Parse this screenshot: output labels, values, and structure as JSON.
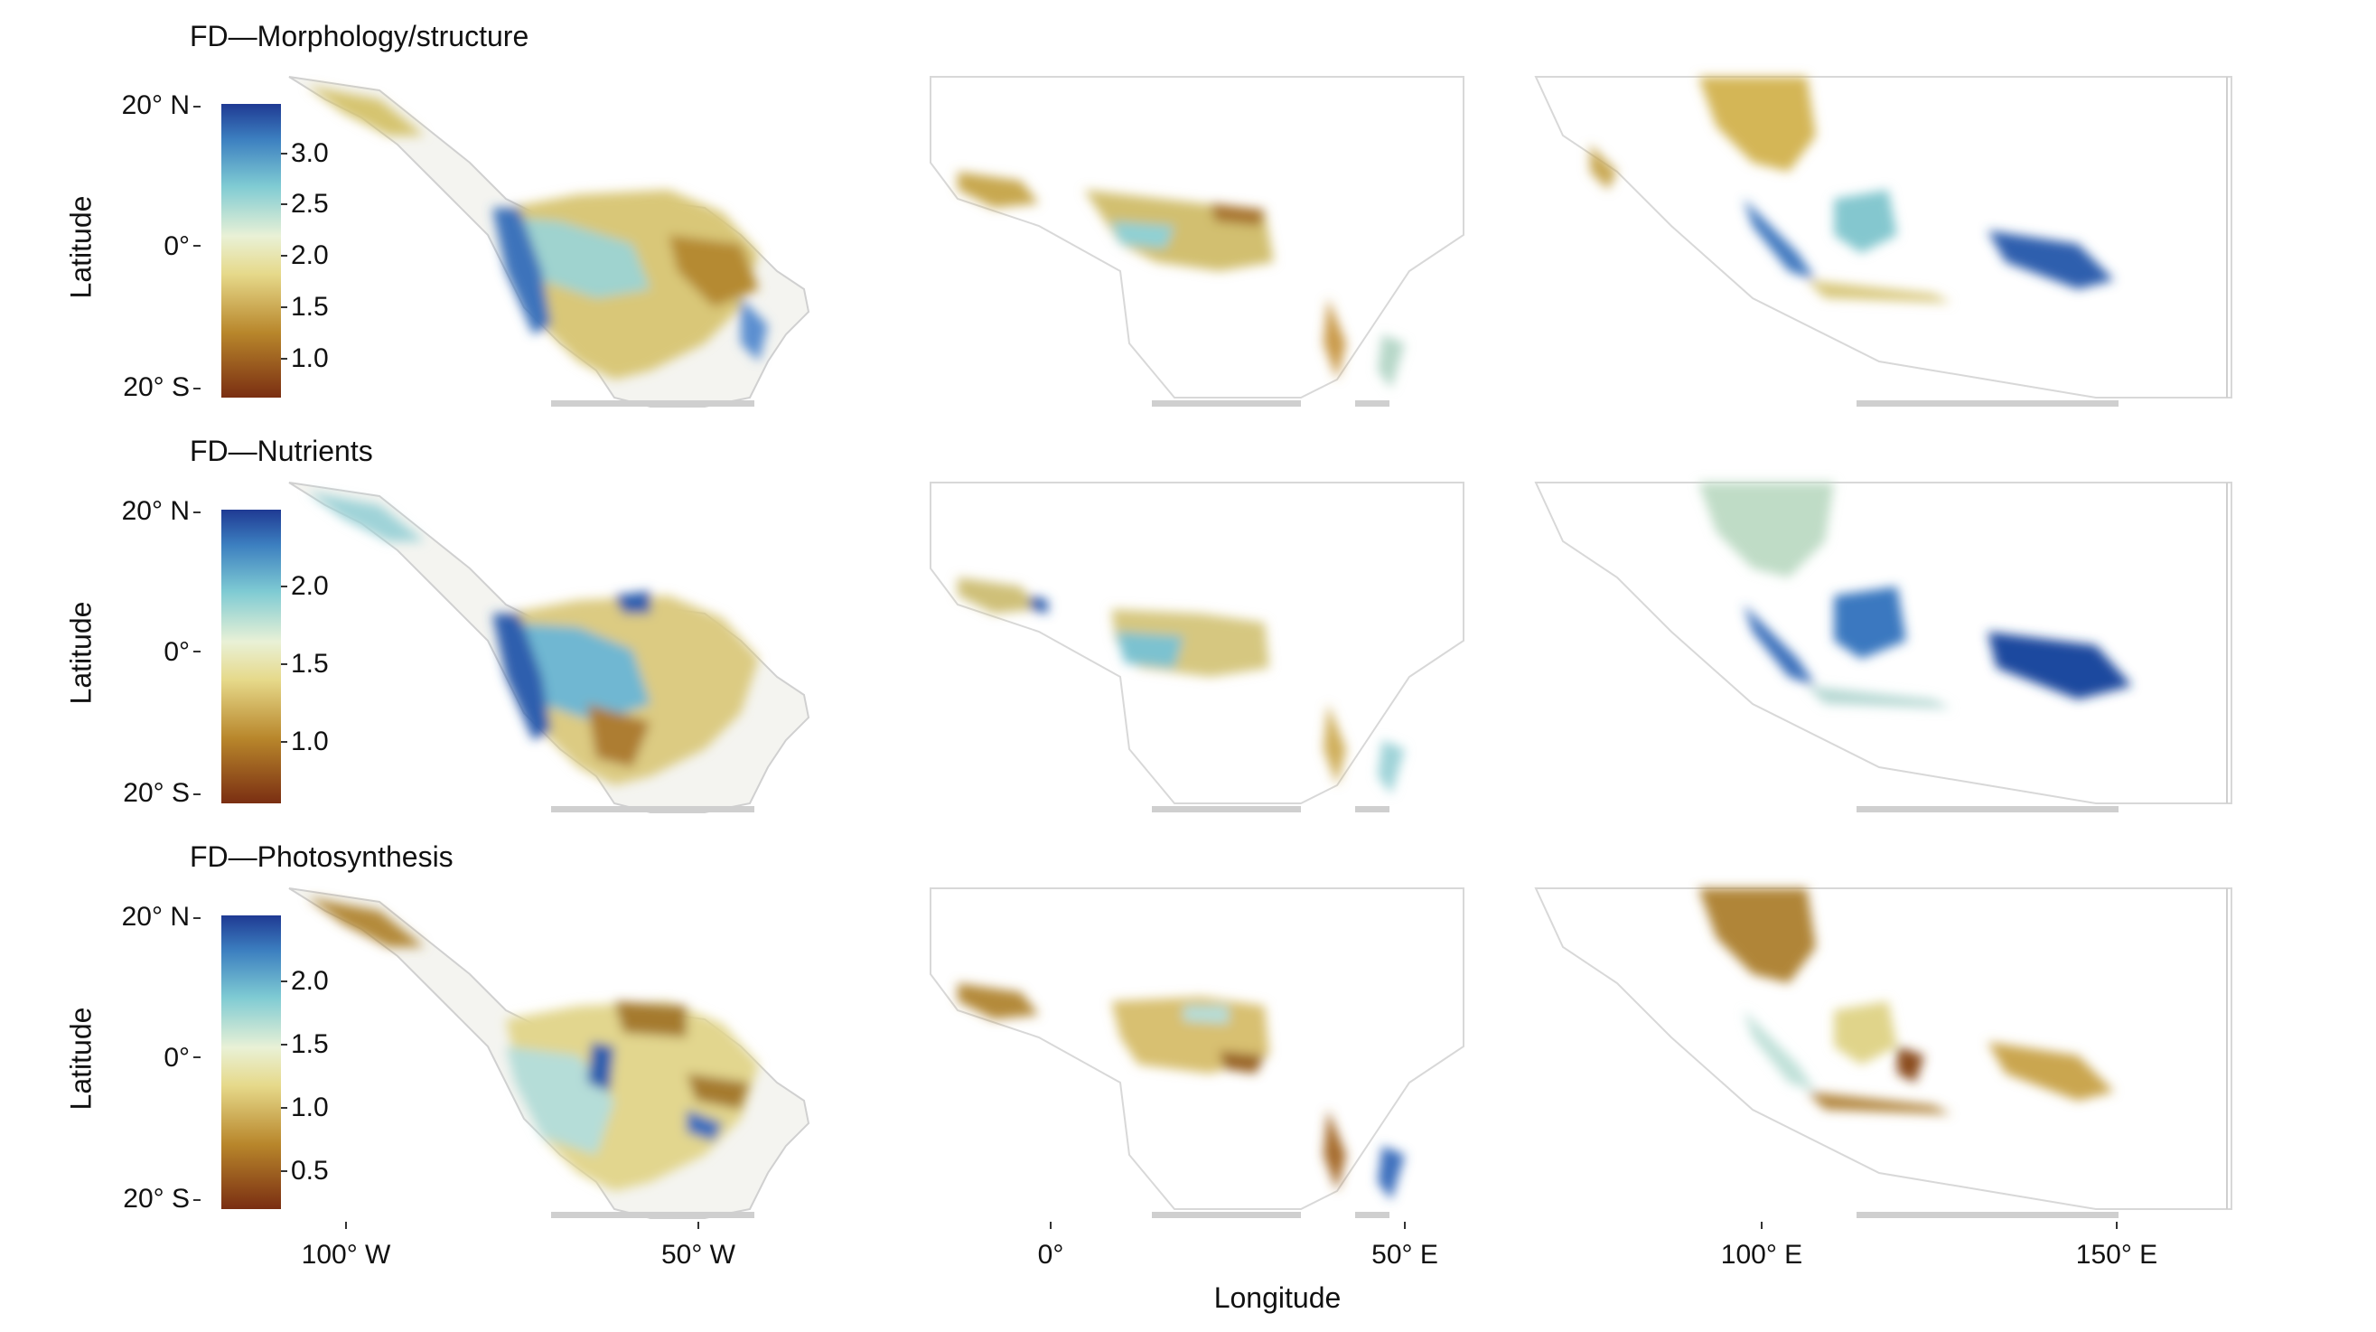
{
  "panels": [
    {
      "title": "FD—Morphology/structure",
      "ylabel": "Latitude",
      "lat_ticks": [
        "20° N",
        "0°",
        "20° S"
      ],
      "colorbar_ticks": [
        "3.0",
        "2.5",
        "2.0",
        "1.5",
        "1.0"
      ]
    },
    {
      "title": "FD—Nutrients",
      "ylabel": "Latitude",
      "lat_ticks": [
        "20° N",
        "0°",
        "20° S"
      ],
      "colorbar_ticks": [
        "2.0",
        "1.5",
        "1.0"
      ]
    },
    {
      "title": "FD—Photosynthesis",
      "ylabel": "Latitude",
      "lat_ticks": [
        "20° N",
        "0°",
        "20° S"
      ],
      "colorbar_ticks": [
        "2.0",
        "1.5",
        "1.0",
        "0.5"
      ]
    }
  ],
  "x_axis": {
    "label": "Longitude",
    "ticks": [
      "100° W",
      "50° W",
      "0°",
      "50° E",
      "100° E",
      "150° E"
    ]
  },
  "colors": {
    "high": "#1f3a93",
    "mid_high": "#57b3c9",
    "mid": "#eeeec3",
    "mid_low": "#d9c06a",
    "low": "#7a2e12"
  }
}
